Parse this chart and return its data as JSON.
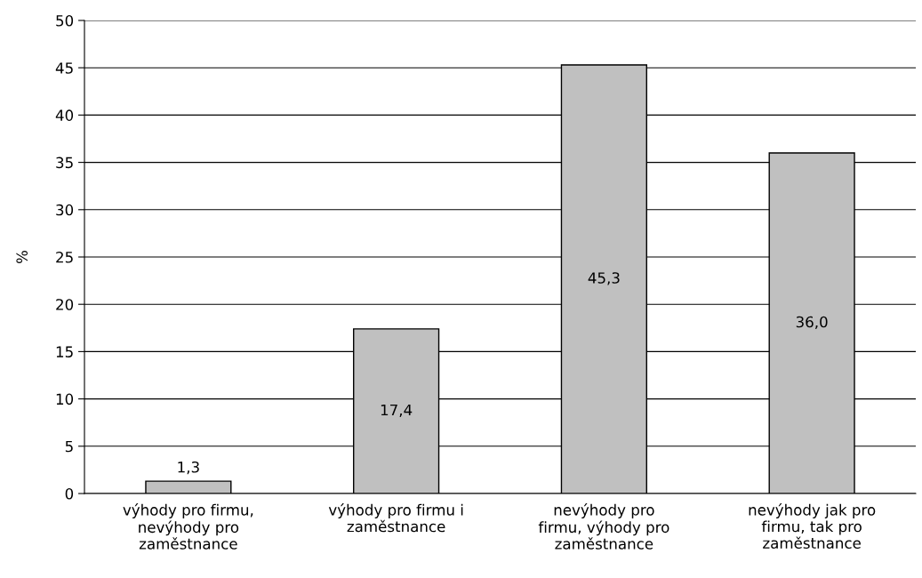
{
  "chart_data": {
    "type": "bar",
    "ylabel": "%",
    "categories": [
      "výhody pro firmu,\nnevýhody pro\nzaměstnance",
      "výhody pro firmu i\nzaměstnance",
      "nevýhody pro\nfirmu, výhody pro\nzaměstnance",
      "nevýhody jak pro\nfirmu, tak pro\nzaměstnance"
    ],
    "values": [
      1.3,
      17.4,
      45.3,
      36.0
    ],
    "value_labels": [
      "1,3",
      "17,4",
      "45,3",
      "36,0"
    ],
    "color": "#c0c0c0",
    "ylim": [
      0,
      50
    ],
    "yticks": [
      0,
      5,
      10,
      15,
      20,
      25,
      30,
      35,
      40,
      45,
      50
    ],
    "grid": "y",
    "legend": false
  }
}
